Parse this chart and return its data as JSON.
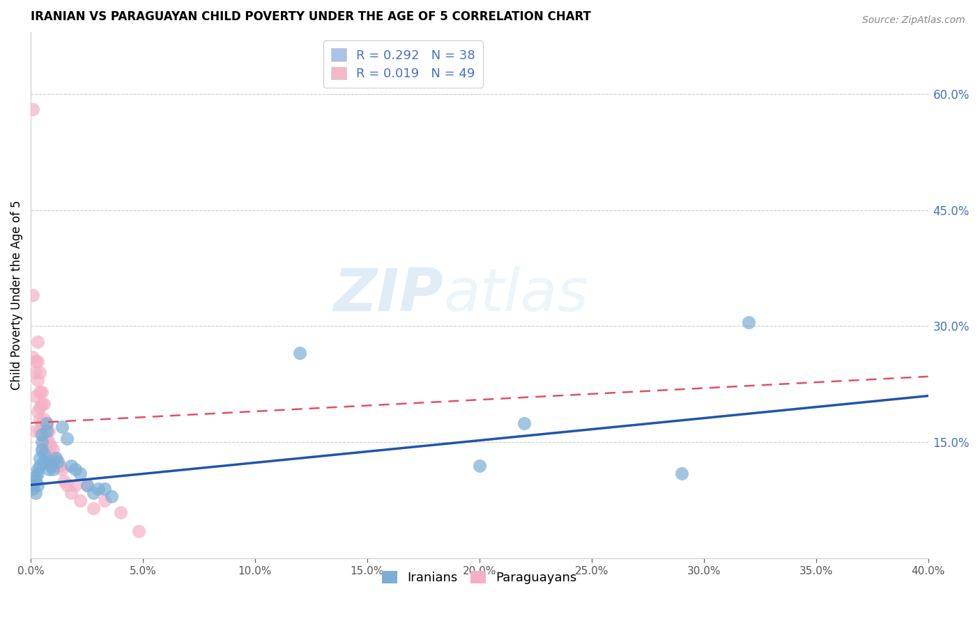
{
  "title": "IRANIAN VS PARAGUAYAN CHILD POVERTY UNDER THE AGE OF 5 CORRELATION CHART",
  "source": "Source: ZipAtlas.com",
  "ylabel": "Child Poverty Under the Age of 5",
  "xlim": [
    0.0,
    0.4
  ],
  "ylim": [
    0.0,
    0.68
  ],
  "xticks": [
    0.0,
    0.05,
    0.1,
    0.15,
    0.2,
    0.25,
    0.3,
    0.35,
    0.4
  ],
  "yticks_right": [
    0.15,
    0.3,
    0.45,
    0.6
  ],
  "legend_entries": [
    {
      "label": "R = 0.292   N = 38",
      "color": "#aac4e8"
    },
    {
      "label": "R = 0.019   N = 49",
      "color": "#f5b8c8"
    }
  ],
  "legend_labels_bottom": [
    "Iranians",
    "Paraguayans"
  ],
  "iranians_color": "#7aaed6",
  "paraguayans_color": "#f5b0c5",
  "trend_iranian_color": "#2255AA",
  "trend_paraguayan_color": "#E05060",
  "watermark_zip": "ZIP",
  "watermark_atlas": "atlas",
  "iranians_x": [
    0.001,
    0.001,
    0.002,
    0.002,
    0.002,
    0.003,
    0.003,
    0.003,
    0.004,
    0.004,
    0.005,
    0.005,
    0.005,
    0.006,
    0.006,
    0.007,
    0.007,
    0.008,
    0.008,
    0.009,
    0.01,
    0.011,
    0.012,
    0.014,
    0.016,
    0.018,
    0.02,
    0.022,
    0.025,
    0.028,
    0.03,
    0.033,
    0.036,
    0.12,
    0.2,
    0.22,
    0.29,
    0.32
  ],
  "iranians_y": [
    0.09,
    0.095,
    0.085,
    0.1,
    0.105,
    0.11,
    0.095,
    0.115,
    0.13,
    0.12,
    0.16,
    0.15,
    0.14,
    0.125,
    0.135,
    0.175,
    0.165,
    0.125,
    0.115,
    0.12,
    0.115,
    0.13,
    0.125,
    0.17,
    0.155,
    0.12,
    0.115,
    0.11,
    0.095,
    0.085,
    0.09,
    0.09,
    0.08,
    0.265,
    0.12,
    0.175,
    0.11,
    0.305
  ],
  "paraguayans_x": [
    0.001,
    0.001,
    0.001,
    0.002,
    0.002,
    0.002,
    0.002,
    0.003,
    0.003,
    0.003,
    0.003,
    0.004,
    0.004,
    0.004,
    0.004,
    0.004,
    0.005,
    0.005,
    0.005,
    0.005,
    0.005,
    0.006,
    0.006,
    0.006,
    0.006,
    0.007,
    0.007,
    0.007,
    0.008,
    0.008,
    0.008,
    0.009,
    0.009,
    0.01,
    0.01,
    0.011,
    0.012,
    0.013,
    0.014,
    0.015,
    0.016,
    0.018,
    0.02,
    0.022,
    0.025,
    0.028,
    0.033,
    0.04,
    0.048
  ],
  "paraguayans_y": [
    0.58,
    0.34,
    0.26,
    0.255,
    0.24,
    0.21,
    0.165,
    0.28,
    0.255,
    0.23,
    0.19,
    0.24,
    0.215,
    0.195,
    0.18,
    0.165,
    0.215,
    0.2,
    0.175,
    0.16,
    0.14,
    0.2,
    0.18,
    0.165,
    0.15,
    0.175,
    0.155,
    0.14,
    0.165,
    0.15,
    0.135,
    0.145,
    0.13,
    0.14,
    0.125,
    0.13,
    0.12,
    0.12,
    0.115,
    0.1,
    0.095,
    0.085,
    0.095,
    0.075,
    0.095,
    0.065,
    0.075,
    0.06,
    0.035
  ],
  "iran_trend_x0": 0.0,
  "iran_trend_x1": 0.4,
  "iran_trend_y0": 0.095,
  "iran_trend_y1": 0.21,
  "para_trend_x0": 0.0,
  "para_trend_x1": 0.4,
  "para_trend_y0": 0.175,
  "para_trend_y1": 0.235
}
